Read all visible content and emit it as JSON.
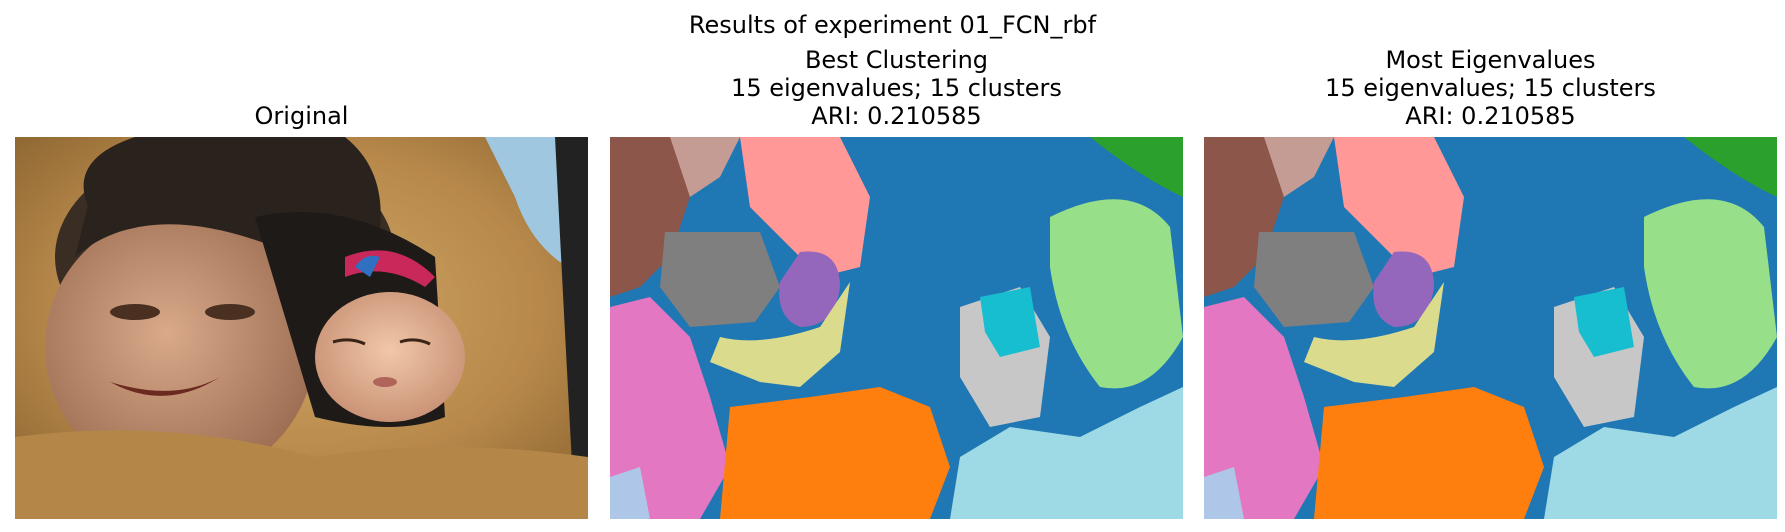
{
  "figure": {
    "suptitle": "Results of experiment 01_FCN_rbf"
  },
  "panels": [
    {
      "title_lines": [
        "Original"
      ]
    },
    {
      "title_lines": [
        "Best Clustering",
        "15 eigenvalues; 15 clusters",
        "ARI: 0.210585"
      ]
    },
    {
      "title_lines": [
        "Most Eigenvalues",
        "15 eigenvalues; 15 clusters",
        "ARI: 0.210585"
      ]
    }
  ],
  "cluster_palette": {
    "blue": "#1f77b4",
    "orange": "#ff7f0e",
    "green": "#2ca02c",
    "light_green": "#98df8a",
    "pink_red": "#ff9896",
    "purple": "#9467bd",
    "brown": "#8c564b",
    "light_brown": "#c49c94",
    "magenta": "#e377c2",
    "gray": "#7f7f7f",
    "light_gray": "#c7c7c7",
    "olive": "#dbdb8d",
    "cyan": "#17becf",
    "light_cyan": "#9edae5",
    "light_blue": "#aec7e8"
  }
}
